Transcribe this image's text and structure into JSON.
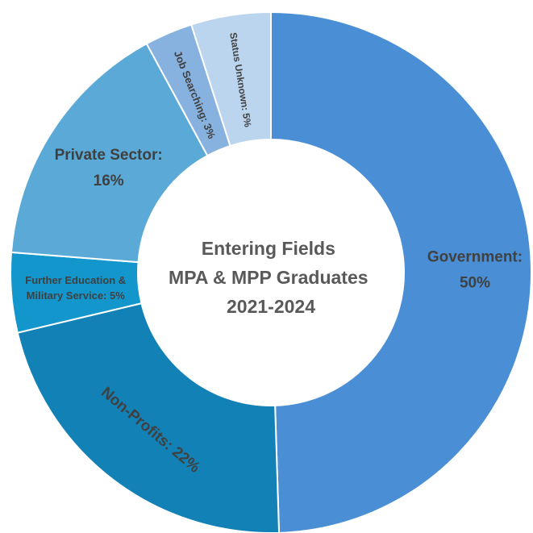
{
  "chart_data": {
    "type": "pie",
    "donut": true,
    "title_lines": [
      "Entering Fields",
      "MPA & MPP Graduates",
      "2021-2024"
    ],
    "slices": [
      {
        "name": "Government",
        "value": 50,
        "color": "#4a8fd6",
        "label_lines": [
          "Government:",
          "50%"
        ]
      },
      {
        "name": "Non-Profits",
        "value": 22,
        "color": "#1281b6",
        "label_lines": [
          "Non-Profits: 22%"
        ]
      },
      {
        "name": "Further Education & Military Service",
        "value": 5,
        "color": "#1396cb",
        "label_lines": [
          "Further Education &",
          "Military Service: 5%"
        ]
      },
      {
        "name": "Private Sector",
        "value": 16,
        "color": "#5aa9d7",
        "label_lines": [
          "Private Sector:",
          "16%"
        ]
      },
      {
        "name": "Job Searching",
        "value": 3,
        "color": "#87b2e0",
        "label_lines": [
          "Job Searching: 3%"
        ]
      },
      {
        "name": "Status Unknown",
        "value": 5,
        "color": "#bcd5ee",
        "label_lines": [
          "Status Unknown: 5%"
        ]
      }
    ]
  }
}
